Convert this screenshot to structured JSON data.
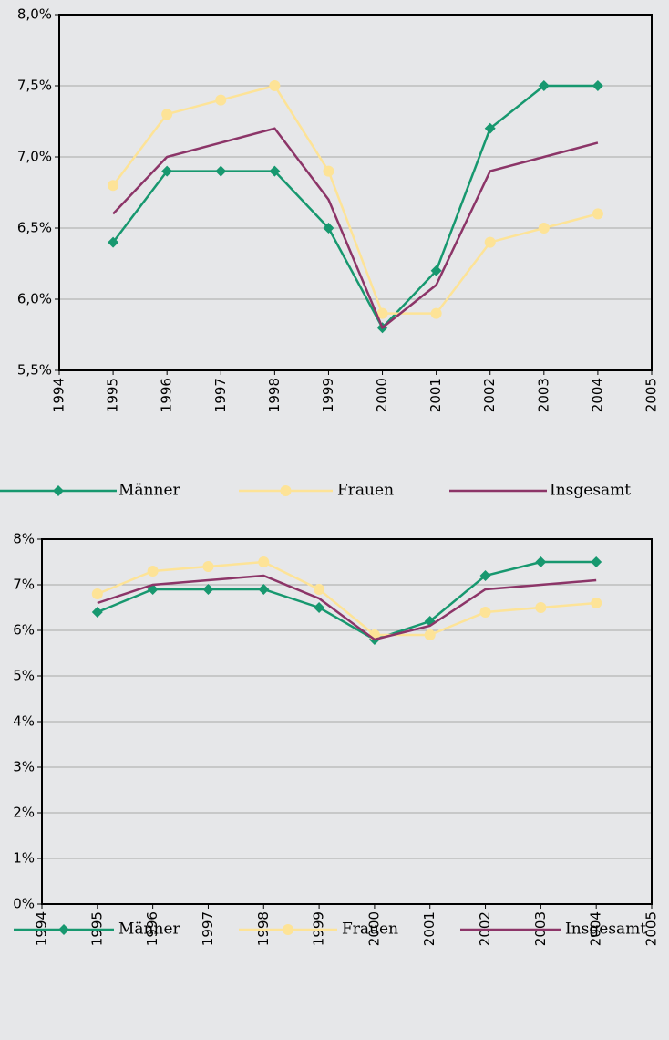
{
  "chart_data": [
    {
      "type": "line",
      "x": [
        1995,
        1996,
        1997,
        1998,
        1999,
        2000,
        2001,
        2002,
        2003,
        2004
      ],
      "series": [
        {
          "name": "Männer",
          "color": "#17986f",
          "marker": "diamond",
          "values": [
            6.4,
            6.9,
            6.9,
            6.9,
            6.5,
            5.8,
            6.2,
            7.2,
            7.5,
            7.5
          ]
        },
        {
          "name": "Frauen",
          "color": "#fde397",
          "marker": "circle",
          "values": [
            6.8,
            7.3,
            7.4,
            7.5,
            6.9,
            5.9,
            5.9,
            6.4,
            6.5,
            6.6
          ]
        },
        {
          "name": "Insgesamt",
          "color": "#8c3568",
          "marker": null,
          "values": [
            6.6,
            7.0,
            7.1,
            7.2,
            6.7,
            5.8,
            6.1,
            6.9,
            7.0,
            7.1
          ]
        }
      ],
      "xlim": [
        1994,
        2005
      ],
      "xticks": [
        1994,
        1995,
        1996,
        1997,
        1998,
        1999,
        2000,
        2001,
        2002,
        2003,
        2004,
        2005
      ],
      "ylim": [
        5.5,
        8.0
      ],
      "yticks": [
        {
          "value": 5.5,
          "label": "5,5%"
        },
        {
          "value": 6.0,
          "label": "6,0%"
        },
        {
          "value": 6.5,
          "label": "6,5%"
        },
        {
          "value": 7.0,
          "label": "7,0%"
        },
        {
          "value": 7.5,
          "label": "7,5%"
        },
        {
          "value": 8.0,
          "label": "8,0%"
        }
      ],
      "grid": true,
      "legend": "bottom"
    },
    {
      "type": "line",
      "x": [
        1995,
        1996,
        1997,
        1998,
        1999,
        2000,
        2001,
        2002,
        2003,
        2004
      ],
      "series": [
        {
          "name": "Männer",
          "color": "#17986f",
          "marker": "diamond",
          "values": [
            6.4,
            6.9,
            6.9,
            6.9,
            6.5,
            5.8,
            6.2,
            7.2,
            7.5,
            7.5
          ]
        },
        {
          "name": "Frauen",
          "color": "#fde397",
          "marker": "circle",
          "values": [
            6.8,
            7.3,
            7.4,
            7.5,
            6.9,
            5.9,
            5.9,
            6.4,
            6.5,
            6.6
          ]
        },
        {
          "name": "Insgesamt",
          "color": "#8c3568",
          "marker": null,
          "values": [
            6.6,
            7.0,
            7.1,
            7.2,
            6.7,
            5.8,
            6.1,
            6.9,
            7.0,
            7.1
          ]
        }
      ],
      "xlim": [
        1994,
        2005
      ],
      "xticks": [
        1994,
        1995,
        1996,
        1997,
        1998,
        1999,
        2000,
        2001,
        2002,
        2003,
        2004,
        2005
      ],
      "ylim": [
        0,
        8
      ],
      "yticks": [
        {
          "value": 0,
          "label": "0%"
        },
        {
          "value": 1,
          "label": "1%"
        },
        {
          "value": 2,
          "label": "2%"
        },
        {
          "value": 3,
          "label": "3%"
        },
        {
          "value": 4,
          "label": "4%"
        },
        {
          "value": 5,
          "label": "5%"
        },
        {
          "value": 6,
          "label": "6%"
        },
        {
          "value": 7,
          "label": "7%"
        },
        {
          "value": 8,
          "label": "8%"
        }
      ],
      "grid": true,
      "legend": "bottom"
    }
  ]
}
